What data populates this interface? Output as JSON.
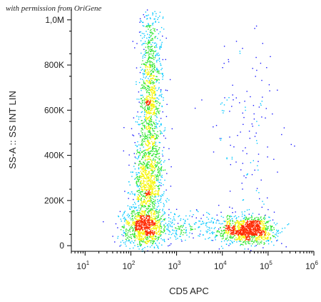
{
  "credit": "with permission from OriGene",
  "colors": {
    "low": "#1a1aff",
    "mid_low": "#00c8ff",
    "mid": "#2ee62e",
    "mid_high": "#f5f500",
    "high": "#ff2a00",
    "axis": "#000000"
  },
  "chart_data": {
    "type": "scatter",
    "subtype": "flow-cytometry density dot plot",
    "xlabel": "CD5 APC",
    "ylabel": "SS-A :: SS INT LIN",
    "x_scale": "log",
    "xlim": [
      5,
      1000000
    ],
    "ylim": [
      -25000,
      1050000
    ],
    "x_ticks": [
      {
        "value": 10,
        "base": "10",
        "exp": "1"
      },
      {
        "value": 100,
        "base": "10",
        "exp": "2"
      },
      {
        "value": 1000,
        "base": "10",
        "exp": "3"
      },
      {
        "value": 10000,
        "base": "10",
        "exp": "4"
      },
      {
        "value": 100000,
        "base": "10",
        "exp": "5"
      },
      {
        "value": 1000000,
        "base": "10",
        "exp": "6"
      }
    ],
    "y_ticks": [
      {
        "value": 0,
        "label": "0"
      },
      {
        "value": 200000,
        "label": "200K"
      },
      {
        "value": 400000,
        "label": "400K"
      },
      {
        "value": 600000,
        "label": "600K"
      },
      {
        "value": 800000,
        "label": "800K"
      },
      {
        "value": 1000000,
        "label": "1,0M"
      }
    ],
    "populations": [
      {
        "x_center": 180,
        "y_center": 80000,
        "x_spread_log": 0.25,
        "y_spread": 40000,
        "n": 700
      },
      {
        "x_center": 220,
        "y_center": 250000,
        "x_spread_log": 0.18,
        "y_spread": 120000,
        "n": 900
      },
      {
        "x_center": 270,
        "y_center": 650000,
        "x_spread_log": 0.13,
        "y_spread": 220000,
        "n": 1200
      },
      {
        "x_center": 35000,
        "y_center": 70000,
        "x_spread_log": 0.28,
        "y_spread": 30000,
        "n": 1100
      },
      {
        "x_center": 2000,
        "y_center": 80000,
        "x_spread_log": 0.55,
        "y_spread": 35000,
        "n": 250
      },
      {
        "x_center": 30000,
        "y_center": 450000,
        "x_spread_log": 0.4,
        "y_spread": 280000,
        "n": 150
      }
    ],
    "grid": false,
    "legend": "none"
  }
}
